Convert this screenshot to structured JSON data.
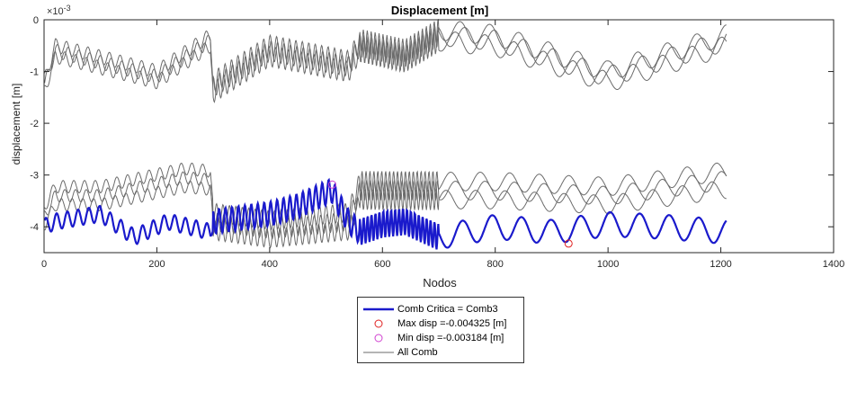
{
  "chart_data": {
    "type": "line",
    "title": "Displacement [m]",
    "xlabel": "Nodos",
    "ylabel": "displacement [m]",
    "y_exponent_label": "×10^-3",
    "y_exponent_parts": {
      "base": "×10",
      "exp": "-3"
    },
    "xlim": [
      0,
      1400
    ],
    "ylim": [
      -4.5,
      0
    ],
    "y_display_scale": 0.001,
    "xticks": [
      "0",
      "200",
      "400",
      "600",
      "800",
      "1000",
      "1200",
      "1400"
    ],
    "yticks": [
      "0",
      "-1",
      "-2",
      "-3",
      "-4"
    ],
    "grid": false,
    "legend_position": "bottom-outside",
    "colors": {
      "critical": "#1a1acc",
      "all": "#6b6b6b",
      "max": "#e02020",
      "min": "#d040d0"
    },
    "series": [
      {
        "name": "Comb Critica = Comb3",
        "x_range": [
          1,
          1210
        ],
        "approx_profile": [
          [
            0,
            -4.0
          ],
          [
            20,
            -3.9
          ],
          [
            100,
            -3.75
          ],
          [
            160,
            -4.2
          ],
          [
            220,
            -3.9
          ],
          [
            295,
            -4.1
          ],
          [
            300,
            -3.9
          ],
          [
            400,
            -3.75
          ],
          [
            450,
            -3.6
          ],
          [
            510,
            -3.3
          ],
          [
            540,
            -3.9
          ],
          [
            560,
            -4.1
          ],
          [
            600,
            -3.95
          ],
          [
            640,
            -3.9
          ],
          [
            700,
            -4.2
          ],
          [
            800,
            -4.0
          ],
          [
            900,
            -4.1
          ],
          [
            1000,
            -3.95
          ],
          [
            1100,
            -4.0
          ],
          [
            1210,
            -4.1
          ]
        ]
      },
      {
        "name": "All Comb",
        "x_range": [
          1,
          1210
        ],
        "approx_profile_upper": [
          [
            0,
            -1.3
          ],
          [
            20,
            -0.6
          ],
          [
            200,
            -1.1
          ],
          [
            295,
            -0.4
          ],
          [
            300,
            -1.3
          ],
          [
            400,
            -0.6
          ],
          [
            540,
            -0.9
          ],
          [
            560,
            -0.5
          ],
          [
            640,
            -0.7
          ],
          [
            700,
            -0.3
          ],
          [
            800,
            -0.4
          ],
          [
            1000,
            -1.1
          ],
          [
            1210,
            -0.4
          ]
        ],
        "approx_profile_lower": [
          [
            0,
            -3.8
          ],
          [
            20,
            -3.4
          ],
          [
            100,
            -3.4
          ],
          [
            250,
            -3.05
          ],
          [
            295,
            -3.1
          ],
          [
            300,
            -3.9
          ],
          [
            400,
            -4.05
          ],
          [
            540,
            -3.9
          ],
          [
            560,
            -3.3
          ],
          [
            640,
            -3.3
          ],
          [
            700,
            -3.3
          ],
          [
            800,
            -3.3
          ],
          [
            1000,
            -3.4
          ],
          [
            1210,
            -3.1
          ]
        ]
      }
    ],
    "markers": [
      {
        "name": "Max disp =-0.004325 [m]",
        "x": 930,
        "y": -0.004325
      },
      {
        "name": "Min disp =-0.003184 [m]",
        "x": 511,
        "y": -0.003184
      }
    ]
  }
}
